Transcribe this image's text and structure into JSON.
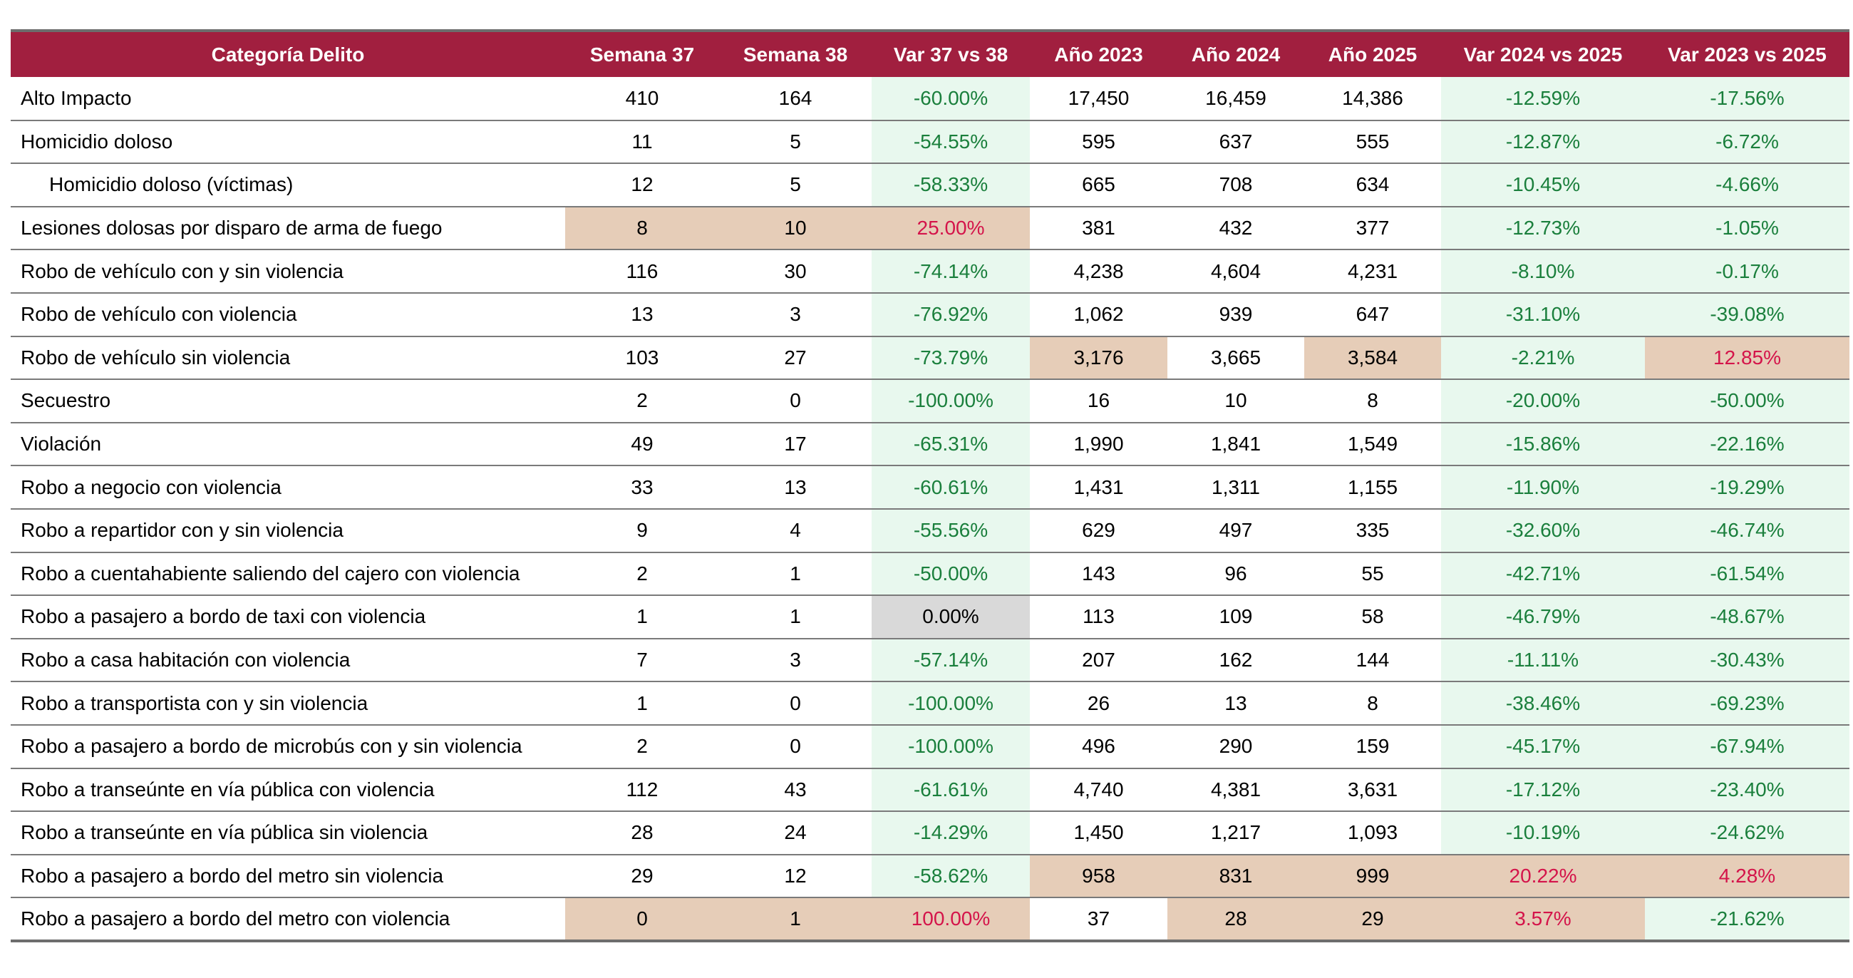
{
  "headers": [
    "Categoría Delito",
    "Semana 37",
    "Semana 38",
    "Var 37 vs 38",
    "Año 2023",
    "Año 2024",
    "Año 2025",
    "Var 2024 vs 2025",
    "Var 2023 vs 2025"
  ],
  "colors": {
    "header_bg": "#a11f3f",
    "good_bg": "#e8f8ee",
    "good_text": "#1a7f3c",
    "bad_text": "#d4144a",
    "tan_bg": "#e6cdb8",
    "neutral_bg": "#d9d9d9"
  },
  "rows": [
    {
      "cat": "Alto Impacto",
      "sub": false,
      "vals": [
        "410",
        "164",
        "-60.00%",
        "17,450",
        "16,459",
        "14,386",
        "-12.59%",
        "-17.56%"
      ],
      "st": [
        "",
        "",
        "good",
        "",
        "",
        "",
        "good",
        "good"
      ]
    },
    {
      "cat": "Homicidio doloso",
      "sub": false,
      "vals": [
        "11",
        "5",
        "-54.55%",
        "595",
        "637",
        "555",
        "-12.87%",
        "-6.72%"
      ],
      "st": [
        "",
        "",
        "good",
        "",
        "",
        "",
        "good",
        "good"
      ]
    },
    {
      "cat": "Homicidio doloso (víctimas)",
      "sub": true,
      "vals": [
        "12",
        "5",
        "-58.33%",
        "665",
        "708",
        "634",
        "-10.45%",
        "-4.66%"
      ],
      "st": [
        "",
        "",
        "good",
        "",
        "",
        "",
        "good",
        "good"
      ]
    },
    {
      "cat": "Lesiones dolosas por disparo de arma de fuego",
      "sub": false,
      "vals": [
        "8",
        "10",
        "25.00%",
        "381",
        "432",
        "377",
        "-12.73%",
        "-1.05%"
      ],
      "st": [
        "tan",
        "tan",
        "tan bad",
        "",
        "",
        "",
        "good",
        "good"
      ]
    },
    {
      "cat": "Robo de vehículo con y sin violencia",
      "sub": false,
      "vals": [
        "116",
        "30",
        "-74.14%",
        "4,238",
        "4,604",
        "4,231",
        "-8.10%",
        "-0.17%"
      ],
      "st": [
        "",
        "",
        "good",
        "",
        "",
        "",
        "good",
        "good"
      ]
    },
    {
      "cat": "Robo de vehículo con violencia",
      "sub": false,
      "vals": [
        "13",
        "3",
        "-76.92%",
        "1,062",
        "939",
        "647",
        "-31.10%",
        "-39.08%"
      ],
      "st": [
        "",
        "",
        "good",
        "",
        "",
        "",
        "good",
        "good"
      ]
    },
    {
      "cat": "Robo de vehículo sin violencia",
      "sub": false,
      "vals": [
        "103",
        "27",
        "-73.79%",
        "3,176",
        "3,665",
        "3,584",
        "-2.21%",
        "12.85%"
      ],
      "st": [
        "",
        "",
        "good",
        "tan",
        "",
        "tan",
        "good",
        "tan bad"
      ]
    },
    {
      "cat": "Secuestro",
      "sub": false,
      "vals": [
        "2",
        "0",
        "-100.00%",
        "16",
        "10",
        "8",
        "-20.00%",
        "-50.00%"
      ],
      "st": [
        "",
        "",
        "good",
        "",
        "",
        "",
        "good",
        "good"
      ]
    },
    {
      "cat": "Violación",
      "sub": false,
      "vals": [
        "49",
        "17",
        "-65.31%",
        "1,990",
        "1,841",
        "1,549",
        "-15.86%",
        "-22.16%"
      ],
      "st": [
        "",
        "",
        "good",
        "",
        "",
        "",
        "good",
        "good"
      ]
    },
    {
      "cat": "Robo a negocio con violencia",
      "sub": false,
      "vals": [
        "33",
        "13",
        "-60.61%",
        "1,431",
        "1,311",
        "1,155",
        "-11.90%",
        "-19.29%"
      ],
      "st": [
        "",
        "",
        "good",
        "",
        "",
        "",
        "good",
        "good"
      ]
    },
    {
      "cat": "Robo a repartidor con y sin violencia",
      "sub": false,
      "vals": [
        "9",
        "4",
        "-55.56%",
        "629",
        "497",
        "335",
        "-32.60%",
        "-46.74%"
      ],
      "st": [
        "",
        "",
        "good",
        "",
        "",
        "",
        "good",
        "good"
      ]
    },
    {
      "cat": "Robo a cuentahabiente saliendo del cajero con violencia",
      "sub": false,
      "vals": [
        "2",
        "1",
        "-50.00%",
        "143",
        "96",
        "55",
        "-42.71%",
        "-61.54%"
      ],
      "st": [
        "",
        "",
        "good",
        "",
        "",
        "",
        "good",
        "good"
      ]
    },
    {
      "cat": "Robo a pasajero a bordo de taxi con violencia",
      "sub": false,
      "vals": [
        "1",
        "1",
        "0.00%",
        "113",
        "109",
        "58",
        "-46.79%",
        "-48.67%"
      ],
      "st": [
        "",
        "",
        "neutral",
        "",
        "",
        "",
        "good",
        "good"
      ]
    },
    {
      "cat": "Robo a casa habitación con violencia",
      "sub": false,
      "vals": [
        "7",
        "3",
        "-57.14%",
        "207",
        "162",
        "144",
        "-11.11%",
        "-30.43%"
      ],
      "st": [
        "",
        "",
        "good",
        "",
        "",
        "",
        "good",
        "good"
      ]
    },
    {
      "cat": "Robo a transportista con y sin violencia",
      "sub": false,
      "vals": [
        "1",
        "0",
        "-100.00%",
        "26",
        "13",
        "8",
        "-38.46%",
        "-69.23%"
      ],
      "st": [
        "",
        "",
        "good",
        "",
        "",
        "",
        "good",
        "good"
      ]
    },
    {
      "cat": "Robo a pasajero a bordo de microbús con y sin violencia",
      "sub": false,
      "vals": [
        "2",
        "0",
        "-100.00%",
        "496",
        "290",
        "159",
        "-45.17%",
        "-67.94%"
      ],
      "st": [
        "",
        "",
        "good",
        "",
        "",
        "",
        "good",
        "good"
      ]
    },
    {
      "cat": "Robo a transeúnte en vía pública con violencia",
      "sub": false,
      "vals": [
        "112",
        "43",
        "-61.61%",
        "4,740",
        "4,381",
        "3,631",
        "-17.12%",
        "-23.40%"
      ],
      "st": [
        "",
        "",
        "good",
        "",
        "",
        "",
        "good",
        "good"
      ]
    },
    {
      "cat": "Robo a transeúnte en vía pública sin violencia",
      "sub": false,
      "vals": [
        "28",
        "24",
        "-14.29%",
        "1,450",
        "1,217",
        "1,093",
        "-10.19%",
        "-24.62%"
      ],
      "st": [
        "",
        "",
        "good",
        "",
        "",
        "",
        "good",
        "good"
      ]
    },
    {
      "cat": "Robo a pasajero a bordo del metro sin violencia",
      "sub": false,
      "vals": [
        "29",
        "12",
        "-58.62%",
        "958",
        "831",
        "999",
        "20.22%",
        "4.28%"
      ],
      "st": [
        "",
        "",
        "good",
        "tan",
        "tan",
        "tan",
        "tan bad",
        "tan bad"
      ]
    },
    {
      "cat": "Robo a pasajero a bordo del metro con violencia",
      "sub": false,
      "vals": [
        "0",
        "1",
        "100.00%",
        "37",
        "28",
        "29",
        "3.57%",
        "-21.62%"
      ],
      "st": [
        "tan",
        "tan",
        "tan bad",
        "",
        "tan",
        "tan",
        "tan bad",
        "good"
      ]
    }
  ]
}
